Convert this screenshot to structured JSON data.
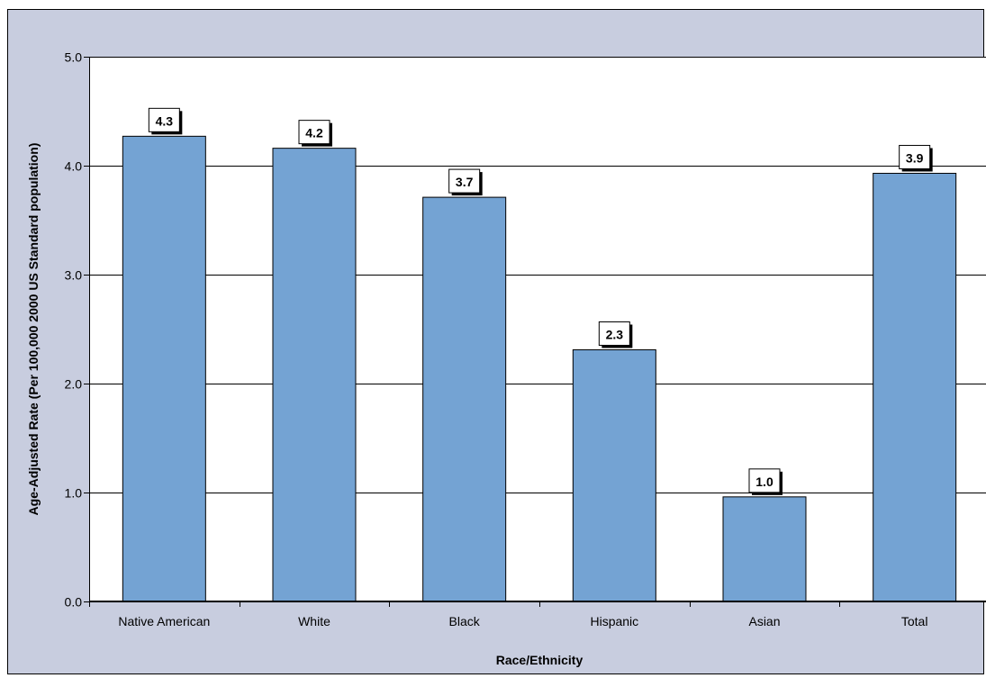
{
  "chart_data": {
    "type": "bar",
    "title": "",
    "xlabel": "Race/Ethnicity",
    "ylabel": "Age-Adjusted Rate (Per 100,000 2000 US Standard population)",
    "categories": [
      "Native American",
      "White",
      "Black",
      "Hispanic",
      "Asian",
      "Total"
    ],
    "values": [
      4.27,
      4.16,
      3.71,
      2.31,
      0.96,
      3.93
    ],
    "data_labels": [
      "4.3",
      "4.2",
      "3.7",
      "2.3",
      "1.0",
      "3.9"
    ],
    "ylim": [
      0,
      5
    ],
    "yticks": [
      "0.0",
      "1.0",
      "2.0",
      "3.0",
      "4.0",
      "5.0"
    ],
    "grid": true,
    "legend": "none",
    "colors": {
      "bar": "#74a3d3",
      "background": "#c8cddf",
      "plot": "#ffffff"
    }
  }
}
